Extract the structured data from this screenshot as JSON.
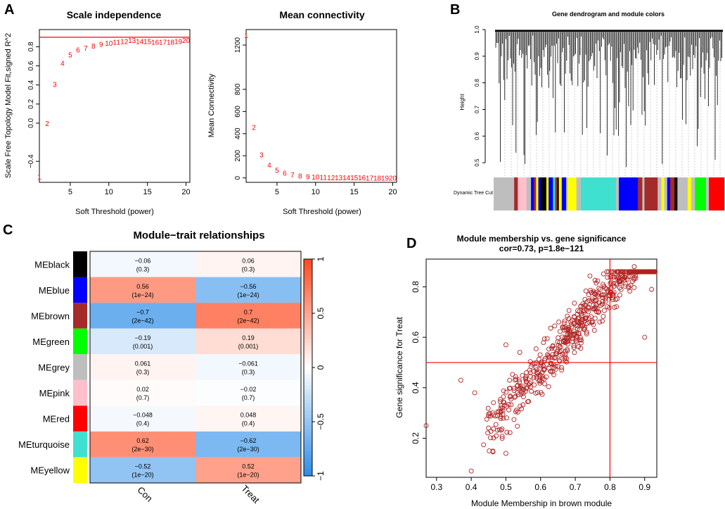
{
  "panel_labels": {
    "a": "A",
    "b": "B",
    "c": "C",
    "d": "D"
  },
  "colors": {
    "accent_red": "#ff0000",
    "point_red": "#b22222",
    "cell_text": "#000000",
    "heat_neg": "#2b8ce8",
    "heat_mid": "#ffffff",
    "heat_pos": "#ff4a1f"
  },
  "chart_data": [
    {
      "id": "scale_independence",
      "type": "scatter",
      "title": "Scale independence",
      "xlabel": "Soft Threshold (power)",
      "ylabel": "Scale Free Topology Model Fit,signed R^2",
      "xlim": [
        1,
        20.5
      ],
      "ylim": [
        -0.62,
        0.98
      ],
      "xticks": [
        5,
        10,
        15,
        20
      ],
      "yticks": [
        -0.4,
        0.0,
        0.2,
        0.4,
        0.6,
        0.8
      ],
      "hline": 0.9,
      "x": [
        1,
        2,
        3,
        4,
        5,
        6,
        7,
        8,
        9,
        10,
        11,
        12,
        13,
        14,
        15,
        16,
        17,
        18,
        19,
        20
      ],
      "y": [
        -0.56,
        0.0,
        0.41,
        0.63,
        0.72,
        0.77,
        0.79,
        0.81,
        0.83,
        0.84,
        0.85,
        0.86,
        0.87,
        0.86,
        0.86,
        0.85,
        0.85,
        0.85,
        0.86,
        0.87
      ],
      "point_labels": [
        "1",
        "2",
        "3",
        "4",
        "5",
        "6",
        "7",
        "8",
        "9",
        "10",
        "11",
        "12",
        "13",
        "14",
        "15",
        "16",
        "17",
        "18",
        "19",
        "20"
      ]
    },
    {
      "id": "mean_connectivity",
      "type": "scatter",
      "title": "Mean connectivity",
      "xlabel": "Soft Threshold (power)",
      "ylabel": "Mean Connectivity",
      "xlim": [
        1,
        20.5
      ],
      "ylim": [
        -40,
        1340
      ],
      "xticks": [
        5,
        10,
        15,
        20
      ],
      "yticks": [
        0,
        200,
        400,
        600,
        800,
        1200
      ],
      "x": [
        1,
        2,
        3,
        4,
        5,
        6,
        7,
        8,
        9,
        10,
        11,
        12,
        13,
        14,
        15,
        16,
        17,
        18,
        19,
        20
      ],
      "y": [
        1290,
        460,
        210,
        120,
        70,
        45,
        30,
        20,
        15,
        10,
        8,
        6,
        5,
        4,
        3,
        3,
        2,
        2,
        2,
        1
      ],
      "point_labels": [
        "1",
        "2",
        "3",
        "4",
        "5",
        "6",
        "7",
        "8",
        "9",
        "10",
        "11",
        "12",
        "13",
        "14",
        "15",
        "16",
        "17",
        "18",
        "19",
        "20"
      ]
    },
    {
      "id": "gene_dendrogram",
      "type": "dendrogram",
      "title": "Gene dendrogram and module colors",
      "ylabel": "Height",
      "ylim": [
        0.45,
        1.0
      ],
      "yticks": [
        0.5,
        0.6,
        0.7,
        0.8,
        0.9,
        1.0
      ],
      "color_bar_label": "Dynamic Tree Cut",
      "color_bar": [
        {
          "color": "#bebebe",
          "w": 28
        },
        {
          "color": "#a52a2a",
          "w": 5
        },
        {
          "color": "#ffc0cb",
          "w": 12
        },
        {
          "color": "#bebebe",
          "w": 6
        },
        {
          "color": "#0000ff",
          "w": 4
        },
        {
          "color": "#a52a2a",
          "w": 3
        },
        {
          "color": "#ffff00",
          "w": 3
        },
        {
          "color": "#0000ff",
          "w": 3
        },
        {
          "color": "#000000",
          "w": 8
        },
        {
          "color": "#ffff00",
          "w": 3
        },
        {
          "color": "#0000ff",
          "w": 6
        },
        {
          "color": "#40e0d0",
          "w": 3
        },
        {
          "color": "#a52a2a",
          "w": 3
        },
        {
          "color": "#000000",
          "w": 2
        },
        {
          "color": "#ffff00",
          "w": 4
        },
        {
          "color": "#0000ff",
          "w": 6
        },
        {
          "color": "#bebebe",
          "w": 2
        },
        {
          "color": "#ffff00",
          "w": 12
        },
        {
          "color": "#bebebe",
          "w": 6
        },
        {
          "color": "#40e0d0",
          "w": 48
        },
        {
          "color": "#bebebe",
          "w": 4
        },
        {
          "color": "#0000ff",
          "w": 26
        },
        {
          "color": "#a52a2a",
          "w": 6
        },
        {
          "color": "#bebebe",
          "w": 3
        },
        {
          "color": "#a52a2a",
          "w": 18
        },
        {
          "color": "#bebebe",
          "w": 5
        },
        {
          "color": "#ffff00",
          "w": 4
        },
        {
          "color": "#bebebe",
          "w": 4
        },
        {
          "color": "#0000ff",
          "w": 4
        },
        {
          "color": "#a52a2a",
          "w": 6
        },
        {
          "color": "#000000",
          "w": 4
        },
        {
          "color": "#bebebe",
          "w": 14
        },
        {
          "color": "#ffff00",
          "w": 5
        },
        {
          "color": "#bebebe",
          "w": 5
        },
        {
          "color": "#00ff00",
          "w": 15
        },
        {
          "color": "#bebebe",
          "w": 4
        },
        {
          "color": "#ff0000",
          "w": 21
        }
      ]
    },
    {
      "id": "module_trait",
      "type": "heatmap",
      "title": "Module−trait relationships",
      "columns": [
        "Con",
        "Treat"
      ],
      "rows": [
        {
          "name": "MEblack",
          "color": "#000000",
          "values": [
            -0.06,
            0.06
          ],
          "cells": [
            {
              "r": "−0.06",
              "p": "(0.3)"
            },
            {
              "r": "0.06",
              "p": "(0.3)"
            }
          ]
        },
        {
          "name": "MEblue",
          "color": "#0000ff",
          "values": [
            0.56,
            -0.56
          ],
          "cells": [
            {
              "r": "0.56",
              "p": "(1e−24)"
            },
            {
              "r": "−0.56",
              "p": "(1e−24)"
            }
          ]
        },
        {
          "name": "MEbrown",
          "color": "#a52a2a",
          "values": [
            -0.7,
            0.7
          ],
          "cells": [
            {
              "r": "−0.7",
              "p": "(2e−42)"
            },
            {
              "r": "0.7",
              "p": "(2e−42)"
            }
          ]
        },
        {
          "name": "MEgreen",
          "color": "#00ff00",
          "values": [
            -0.19,
            0.19
          ],
          "cells": [
            {
              "r": "−0.19",
              "p": "(0.001)"
            },
            {
              "r": "0.19",
              "p": "(0.001)"
            }
          ]
        },
        {
          "name": "MEgrey",
          "color": "#bebebe",
          "values": [
            0.061,
            -0.061
          ],
          "cells": [
            {
              "r": "0.061",
              "p": "(0.3)"
            },
            {
              "r": "−0.061",
              "p": "(0.3)"
            }
          ]
        },
        {
          "name": "MEpink",
          "color": "#ffc0cb",
          "values": [
            0.02,
            -0.02
          ],
          "cells": [
            {
              "r": "0.02",
              "p": "(0.7)"
            },
            {
              "r": "−0.02",
              "p": "(0.7)"
            }
          ]
        },
        {
          "name": "MEred",
          "color": "#ff0000",
          "values": [
            -0.048,
            0.048
          ],
          "cells": [
            {
              "r": "−0.048",
              "p": "(0.4)"
            },
            {
              "r": "0.048",
              "p": "(0.4)"
            }
          ]
        },
        {
          "name": "MEturquoise",
          "color": "#40e0d0",
          "values": [
            0.62,
            -0.62
          ],
          "cells": [
            {
              "r": "0.62",
              "p": "(2e−30)"
            },
            {
              "r": "−0.62",
              "p": "(2e−30)"
            }
          ]
        },
        {
          "name": "MEyellow",
          "color": "#ffff00",
          "values": [
            -0.52,
            0.52
          ],
          "cells": [
            {
              "r": "−0.52",
              "p": "(1e−20)"
            },
            {
              "r": "0.52",
              "p": "(1e−20)"
            }
          ]
        }
      ],
      "colorbar_ticks": [
        1,
        0.5,
        0,
        -0.5,
        -1
      ],
      "colorbar_tick_labels": [
        "1",
        "0.5",
        "0",
        "−0.5",
        "−1"
      ]
    },
    {
      "id": "membership_vs_significance",
      "type": "scatter",
      "title": "Module membership vs. gene significance",
      "subtitle": "cor=0.73, p=1.8e−121",
      "xlabel": "Module Membership in brown module",
      "ylabel": "Gene significance for  Treat",
      "xlim": [
        0.27,
        0.935
      ],
      "ylim": [
        0.045,
        0.91
      ],
      "xticks": [
        0.3,
        0.4,
        0.5,
        0.6,
        0.7,
        0.8,
        0.9
      ],
      "yticks": [
        0.2,
        0.4,
        0.6,
        0.8
      ],
      "vline": 0.8,
      "hline": 0.5,
      "n_points": 620,
      "correlation": 0.73,
      "sample_points": [
        [
          0.27,
          0.25
        ],
        [
          0.4,
          0.07
        ],
        [
          0.37,
          0.43
        ],
        [
          0.41,
          0.38
        ],
        [
          0.5,
          0.57
        ],
        [
          0.54,
          0.54
        ],
        [
          0.87,
          0.88
        ],
        [
          0.85,
          0.83
        ],
        [
          0.92,
          0.79
        ],
        [
          0.78,
          0.81
        ],
        [
          0.9,
          0.6
        ],
        [
          0.5,
          0.14
        ]
      ]
    }
  ]
}
